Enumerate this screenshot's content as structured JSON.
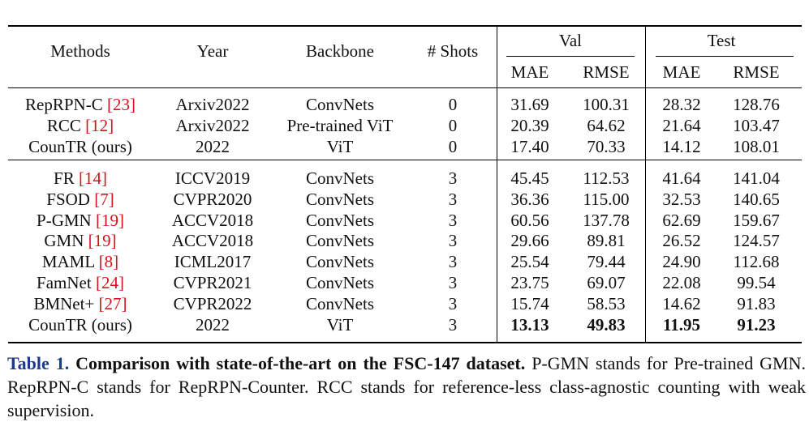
{
  "table": {
    "headers": {
      "methods": "Methods",
      "year": "Year",
      "backbone": "Backbone",
      "shots": "# Shots",
      "val": "Val",
      "test": "Test",
      "val_mae": "MAE",
      "val_rmse": "RMSE",
      "test_mae": "MAE",
      "test_rmse": "RMSE"
    },
    "rows_zero_shot": [
      {
        "method": "RepRPN-C",
        "ref": "[23]",
        "year": "Arxiv2022",
        "backbone": "ConvNets",
        "shots": "0",
        "val_mae": "31.69",
        "val_rmse": "100.31",
        "test_mae": "28.32",
        "test_rmse": "128.76"
      },
      {
        "method": "RCC",
        "ref": "[12]",
        "year": "Arxiv2022",
        "backbone": "Pre-trained ViT",
        "shots": "0",
        "val_mae": "20.39",
        "val_rmse": "64.62",
        "test_mae": "21.64",
        "test_rmse": "103.47"
      },
      {
        "method": "CounTR (ours)",
        "ref": "",
        "year": "2022",
        "backbone": "ViT",
        "shots": "0",
        "val_mae": "17.40",
        "val_rmse": "70.33",
        "test_mae": "14.12",
        "test_rmse": "108.01"
      }
    ],
    "rows_few_shot": [
      {
        "method": "FR",
        "ref": "[14]",
        "year": "ICCV2019",
        "backbone": "ConvNets",
        "shots": "3",
        "val_mae": "45.45",
        "val_rmse": "112.53",
        "test_mae": "41.64",
        "test_rmse": "141.04"
      },
      {
        "method": "FSOD",
        "ref": "[7]",
        "year": "CVPR2020",
        "backbone": "ConvNets",
        "shots": "3",
        "val_mae": "36.36",
        "val_rmse": "115.00",
        "test_mae": "32.53",
        "test_rmse": "140.65"
      },
      {
        "method": "P-GMN",
        "ref": "[19]",
        "year": "ACCV2018",
        "backbone": "ConvNets",
        "shots": "3",
        "val_mae": "60.56",
        "val_rmse": "137.78",
        "test_mae": "62.69",
        "test_rmse": "159.67"
      },
      {
        "method": "GMN",
        "ref": "[19]",
        "year": "ACCV2018",
        "backbone": "ConvNets",
        "shots": "3",
        "val_mae": "29.66",
        "val_rmse": "89.81",
        "test_mae": "26.52",
        "test_rmse": "124.57"
      },
      {
        "method": "MAML",
        "ref": "[8]",
        "year": "ICML2017",
        "backbone": "ConvNets",
        "shots": "3",
        "val_mae": "25.54",
        "val_rmse": "79.44",
        "test_mae": "24.90",
        "test_rmse": "112.68"
      },
      {
        "method": "FamNet",
        "ref": "[24]",
        "year": "CVPR2021",
        "backbone": "ConvNets",
        "shots": "3",
        "val_mae": "23.75",
        "val_rmse": "69.07",
        "test_mae": "22.08",
        "test_rmse": "99.54"
      },
      {
        "method": "BMNet+",
        "ref": "[27]",
        "year": "CVPR2022",
        "backbone": "ConvNets",
        "shots": "3",
        "val_mae": "15.74",
        "val_rmse": "58.53",
        "test_mae": "14.62",
        "test_rmse": "91.83"
      },
      {
        "method": "CounTR (ours)",
        "ref": "",
        "year": "2022",
        "backbone": "ViT",
        "shots": "3",
        "val_mae": "13.13",
        "val_rmse": "49.83",
        "test_mae": "11.95",
        "test_rmse": "91.23",
        "bold_metrics": true
      }
    ]
  },
  "caption": {
    "label": "Table 1.",
    "title": "Comparison with state-of-the-art on the FSC-147 dataset.",
    "body": "P-GMN stands for Pre-trained GMN. RepRPN-C stands for RepRPN-Counter. RCC stands for reference-less class-agnostic counting with weak supervision."
  },
  "colors": {
    "reference_link": "#d3141b",
    "caption_label": "#1b3a8c"
  }
}
